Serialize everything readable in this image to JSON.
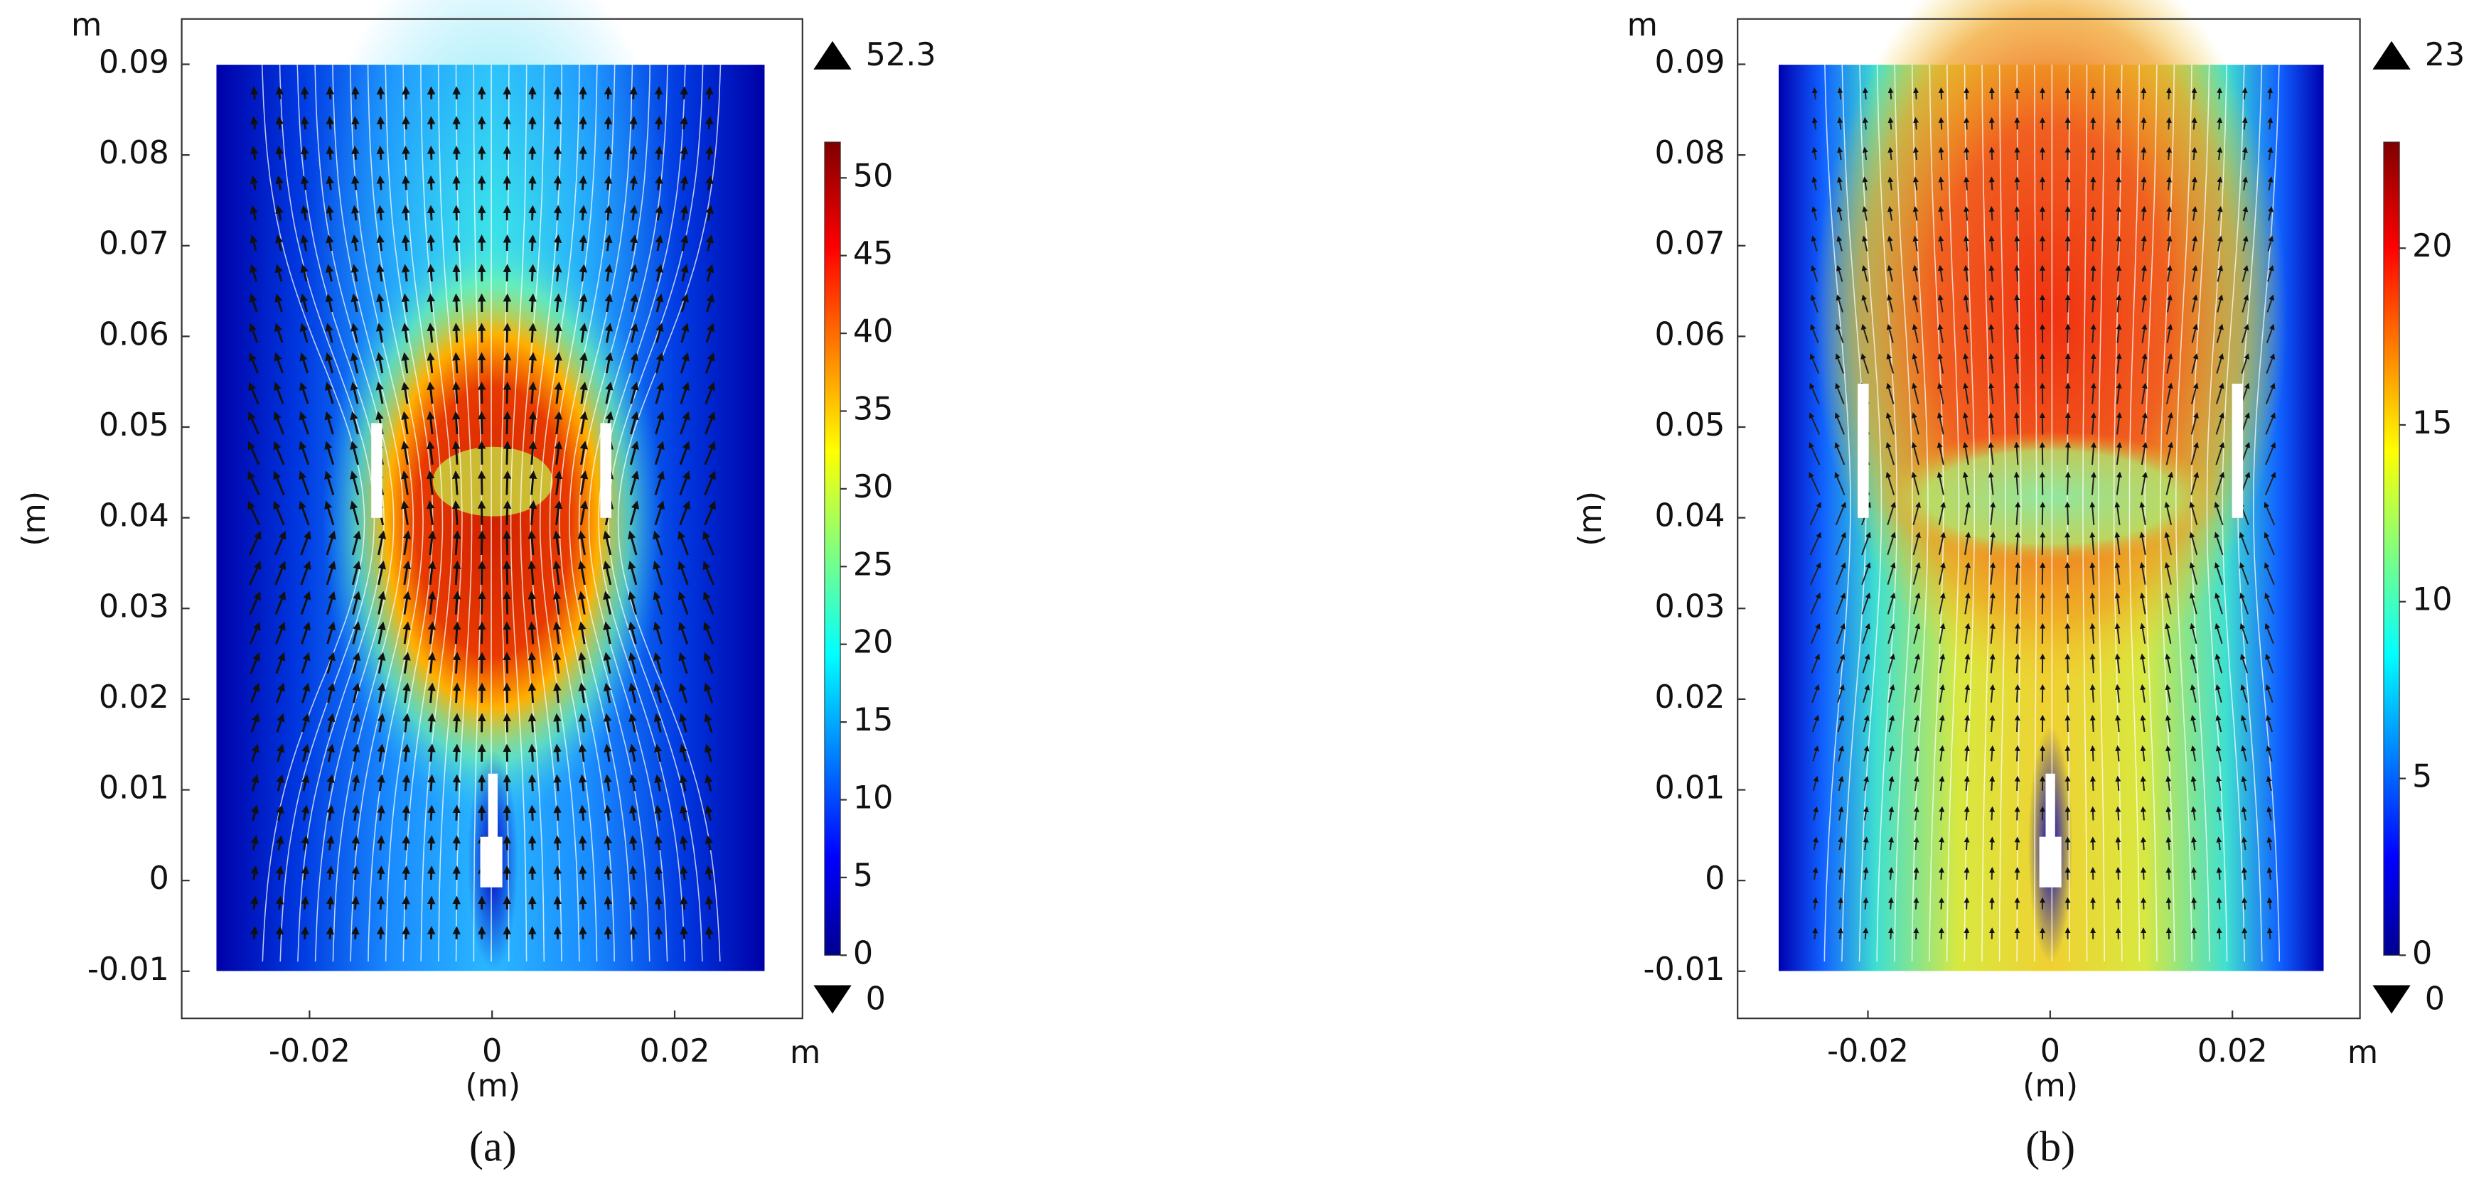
{
  "chart_data": [
    {
      "type": "field",
      "label": "(a)",
      "xlabel": "(m)",
      "ylabel": "(m)",
      "x_unit": "m",
      "y_unit": "m",
      "xlim": [
        -0.034,
        0.034
      ],
      "ylim": [
        -0.0152,
        0.095
      ],
      "xticks": [
        -0.02,
        0,
        0.02
      ],
      "yticks": [
        -0.01,
        0,
        0.01,
        0.02,
        0.03,
        0.04,
        0.05,
        0.06,
        0.07,
        0.08,
        0.09
      ],
      "colorbar": {
        "lim": [
          0,
          52.3
        ],
        "ticks": [
          0,
          5,
          10,
          15,
          20,
          25,
          30,
          35,
          40,
          45,
          50
        ],
        "max": 52.3,
        "min": 0
      }
    },
    {
      "type": "field",
      "label": "(b)",
      "xlabel": "(m)",
      "ylabel": "(m)",
      "x_unit": "m",
      "y_unit": "m",
      "xlim": [
        -0.0343,
        0.034
      ],
      "ylim": [
        -0.0152,
        0.095
      ],
      "xticks": [
        -0.02,
        0,
        0.02
      ],
      "yticks": [
        -0.01,
        0,
        0.01,
        0.02,
        0.03,
        0.04,
        0.05,
        0.06,
        0.07,
        0.08,
        0.09
      ],
      "colorbar": {
        "lim": [
          0,
          23
        ],
        "ticks": [
          0,
          5,
          10,
          15,
          20
        ],
        "max": 23,
        "min": 0
      }
    }
  ]
}
